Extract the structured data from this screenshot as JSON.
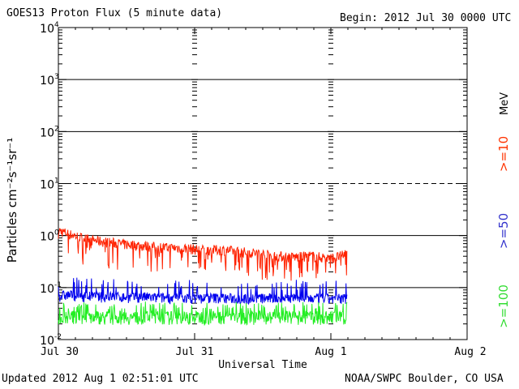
{
  "header": {
    "title": "GOES13 Proton Flux (5 minute data)",
    "begin": "Begin: 2012 Jul 30 0000 UTC"
  },
  "footer": {
    "updated": "Updated 2012 Aug  1 02:51:01 UTC",
    "credit": "NOAA/SWPC Boulder, CO USA"
  },
  "chart_data": {
    "type": "line",
    "title": "GOES13 Proton Flux (5 minute data)",
    "xlabel": "Universal Time",
    "ylabel": "Particles cm⁻²s⁻¹sr⁻¹",
    "y_scale": "log",
    "ylim": [
      0.01,
      10000
    ],
    "xlim_days": [
      0,
      3
    ],
    "x_ticks": [
      {
        "value": 0,
        "label": "Jul 30"
      },
      {
        "value": 1,
        "label": "Jul 31"
      },
      {
        "value": 2,
        "label": "Aug 1"
      },
      {
        "value": 3,
        "label": "Aug 2"
      }
    ],
    "y_ticks": [
      {
        "value": 0.01,
        "base": "10",
        "exp": "-2"
      },
      {
        "value": 0.1,
        "base": "10",
        "exp": "-1"
      },
      {
        "value": 1,
        "base": "10",
        "exp": "0"
      },
      {
        "value": 10,
        "base": "10",
        "exp": "1"
      },
      {
        "value": 100,
        "base": "10",
        "exp": "2"
      },
      {
        "value": 1000,
        "base": "10",
        "exp": "3"
      },
      {
        "value": 10000,
        "base": "10",
        "exp": "4"
      }
    ],
    "right_legend": {
      "unit": "MeV",
      "entries": [
        {
          "label": ">=10",
          "color": "#ff3300"
        },
        {
          "label": ">=50",
          "color": "#3333cc"
        },
        {
          "label": ">=100",
          "color": "#33dd33"
        }
      ]
    },
    "series": [
      {
        "name": ">=10 MeV",
        "color": "#ff2200",
        "x_days": [
          0.0,
          0.08,
          0.16,
          0.24,
          0.32,
          0.4,
          0.48,
          0.56,
          0.64,
          0.72,
          0.8,
          0.88,
          0.96,
          1.04,
          1.12,
          1.2,
          1.28,
          1.36,
          1.44,
          1.52,
          1.6,
          1.68,
          1.76,
          1.84,
          1.92,
          2.0,
          2.08,
          2.12
        ],
        "values": [
          1.3,
          1.1,
          0.95,
          0.85,
          0.8,
          0.75,
          0.7,
          0.68,
          0.65,
          0.62,
          0.6,
          0.6,
          0.58,
          0.55,
          0.55,
          0.55,
          0.52,
          0.5,
          0.48,
          0.45,
          0.42,
          0.4,
          0.4,
          0.42,
          0.4,
          0.38,
          0.42,
          0.5
        ]
      },
      {
        "name": ">=50 MeV",
        "color": "#0000ee",
        "x_days": [
          0.0,
          0.08,
          0.16,
          0.24,
          0.32,
          0.4,
          0.48,
          0.56,
          0.64,
          0.72,
          0.8,
          0.88,
          0.96,
          1.04,
          1.12,
          1.2,
          1.28,
          1.36,
          1.44,
          1.52,
          1.6,
          1.68,
          1.76,
          1.84,
          1.92,
          2.0,
          2.08,
          2.12
        ],
        "values": [
          0.07,
          0.075,
          0.07,
          0.07,
          0.068,
          0.07,
          0.067,
          0.066,
          0.068,
          0.065,
          0.066,
          0.064,
          0.065,
          0.064,
          0.066,
          0.065,
          0.064,
          0.063,
          0.065,
          0.064,
          0.063,
          0.065,
          0.064,
          0.063,
          0.064,
          0.063,
          0.064,
          0.065
        ]
      },
      {
        "name": ">=100 MeV",
        "color": "#22ee22",
        "x_days": [
          0.0,
          0.08,
          0.16,
          0.24,
          0.32,
          0.4,
          0.48,
          0.56,
          0.64,
          0.72,
          0.8,
          0.88,
          0.96,
          1.04,
          1.12,
          1.2,
          1.28,
          1.36,
          1.44,
          1.52,
          1.6,
          1.68,
          1.76,
          1.84,
          1.92,
          2.0,
          2.08,
          2.12
        ],
        "values": [
          0.028,
          0.03,
          0.029,
          0.03,
          0.03,
          0.029,
          0.03,
          0.029,
          0.03,
          0.03,
          0.029,
          0.03,
          0.029,
          0.03,
          0.029,
          0.03,
          0.029,
          0.03,
          0.029,
          0.03,
          0.029,
          0.03,
          0.029,
          0.03,
          0.029,
          0.03,
          0.029,
          0.03
        ]
      }
    ]
  }
}
